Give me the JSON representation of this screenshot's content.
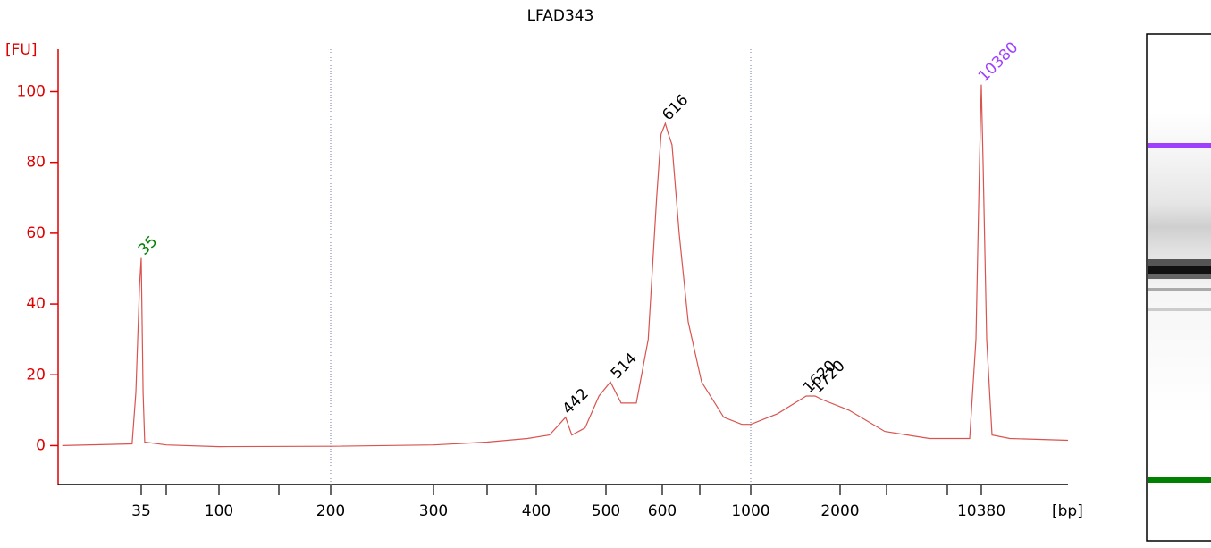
{
  "chart_data": {
    "type": "line",
    "title": "LFAD343",
    "ylabel": "[FU]",
    "xlabel": "[bp]",
    "color": "#d9534f",
    "axis_color": "#e00000",
    "x": [
      16,
      32.8,
      33.7,
      34.6,
      35,
      36.1,
      37.1,
      50,
      100,
      200,
      300,
      350,
      391,
      419,
      433,
      442,
      451,
      470,
      490,
      508,
      527,
      554,
      575,
      590,
      598,
      616,
      633,
      652,
      690,
      738,
      807,
      894,
      965,
      1000,
      1300,
      1620,
      1720,
      1800,
      2192,
      2962,
      5823,
      9224,
      9846,
      10202,
      10380,
      10475,
      10666,
      10952,
      11904,
      15000
    ],
    "values": [
      0,
      0.5,
      15,
      45,
      53,
      15,
      1,
      0.2,
      -0.3,
      -0.2,
      0.2,
      1,
      2,
      3,
      6,
      8,
      3,
      5,
      14,
      18,
      12,
      12,
      30,
      70,
      88,
      91,
      88,
      85,
      60,
      35,
      18,
      8,
      6,
      6,
      9,
      14,
      14,
      13,
      10,
      4,
      2,
      2,
      30,
      80,
      102,
      80,
      30,
      3,
      2,
      1.5
    ],
    "peaks": [
      {
        "size": 35,
        "fu": 53,
        "color": "#008000"
      },
      {
        "size": 442,
        "fu": 8,
        "color": "#000000"
      },
      {
        "size": 514,
        "fu": 18,
        "color": "#000000"
      },
      {
        "size": 616,
        "fu": 91,
        "color": "#000000"
      },
      {
        "size": 1620,
        "fu": 14,
        "color": "#000000"
      },
      {
        "size": 1720,
        "fu": 14,
        "color": "#000000"
      },
      {
        "size": 10380,
        "fu": 102,
        "color": "#a040ff"
      }
    ],
    "xlim": [
      15,
      15000
    ],
    "xticks": [
      35,
      {
        "value": 50,
        "label": null
      },
      100,
      {
        "value": 150,
        "label": null
      },
      200,
      300,
      {
        "value": 350,
        "label": null
      },
      400,
      500,
      600,
      {
        "value": 800,
        "label": null
      },
      1000,
      2000,
      {
        "value": 3000,
        "label": null
      },
      {
        "value": 7000,
        "label": null
      },
      10380
    ],
    "marker_lines": [
      200,
      1000
    ],
    "ylim": [
      -11,
      112
    ],
    "yticks": [
      0,
      20,
      40,
      60,
      80,
      100
    ]
  }
}
